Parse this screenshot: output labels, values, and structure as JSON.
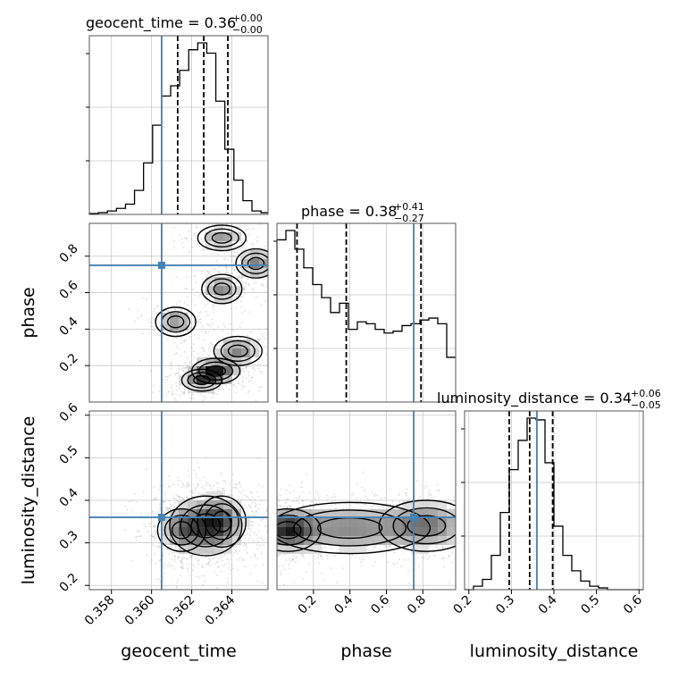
{
  "chart_data": {
    "type": "corner",
    "truth_color": "#4682b4",
    "parameters": [
      "geocent_time",
      "phase",
      "luminosity_distance"
    ],
    "titles": [
      {
        "param": "geocent_time",
        "label": "geocent_time = ",
        "median": "0.36",
        "plus": "+0.00",
        "minus": "−0.00"
      },
      {
        "param": "phase",
        "label": "phase = ",
        "median": "0.38",
        "plus": "+0.41",
        "minus": "−0.27"
      },
      {
        "param": "luminosity_distance",
        "label": "luminosity_distance = ",
        "median": "0.34",
        "plus": "+0.06",
        "minus": "−0.05"
      }
    ],
    "axes": {
      "geocent_time": {
        "label": "geocent_time",
        "range": [
          0.3569,
          0.3658
        ],
        "ticks": [
          0.358,
          0.36,
          0.362,
          0.364
        ],
        "tick_labels": [
          "0.358",
          "0.360",
          "0.362",
          "0.364"
        ],
        "truth": 0.3605,
        "quantiles": [
          0.3613,
          0.3626,
          0.3638
        ]
      },
      "phase": {
        "label": "phase",
        "range": [
          0.0,
          0.98
        ],
        "ticks": [
          0.2,
          0.4,
          0.6,
          0.8
        ],
        "tick_labels": [
          "0.2",
          "0.4",
          "0.6",
          "0.8"
        ],
        "truth": 0.75,
        "quantiles": [
          0.11,
          0.38,
          0.79
        ]
      },
      "luminosity_distance": {
        "label": "luminosity_distance",
        "range": [
          0.19,
          0.61
        ],
        "ticks": [
          0.2,
          0.3,
          0.4,
          0.5,
          0.6
        ],
        "tick_labels": [
          "0.2",
          "0.3",
          "0.4",
          "0.5",
          "0.6"
        ],
        "truth": 0.36,
        "quantiles": [
          0.295,
          0.343,
          0.397
        ]
      }
    },
    "histograms": {
      "geocent_time": {
        "edges": [
          0.3569,
          0.35735,
          0.3578,
          0.35825,
          0.3587,
          0.35915,
          0.3596,
          0.36005,
          0.3605,
          0.36095,
          0.3614,
          0.36185,
          0.3623,
          0.36275,
          0.3632,
          0.36365,
          0.3641,
          0.36455,
          0.365,
          0.36545,
          0.3658
        ],
        "counts": [
          0.005,
          0.01,
          0.02,
          0.035,
          0.06,
          0.14,
          0.3,
          0.52,
          0.69,
          0.75,
          0.84,
          0.96,
          1.0,
          0.94,
          0.66,
          0.38,
          0.2,
          0.08,
          0.02,
          0.01
        ]
      },
      "phase": {
        "edges": [
          0.0,
          0.049,
          0.098,
          0.147,
          0.196,
          0.245,
          0.294,
          0.343,
          0.392,
          0.441,
          0.49,
          0.539,
          0.588,
          0.637,
          0.686,
          0.735,
          0.784,
          0.833,
          0.882,
          0.931,
          0.98
        ],
        "counts": [
          0.87,
          0.92,
          0.82,
          0.72,
          0.63,
          0.56,
          0.48,
          0.53,
          0.39,
          0.43,
          0.42,
          0.39,
          0.37,
          0.38,
          0.41,
          0.42,
          0.44,
          0.45,
          0.42,
          0.24
        ]
      },
      "luminosity_distance": {
        "edges": [
          0.19,
          0.211,
          0.232,
          0.253,
          0.274,
          0.295,
          0.316,
          0.337,
          0.358,
          0.379,
          0.4,
          0.421,
          0.442,
          0.463,
          0.484,
          0.505,
          0.526,
          0.547,
          0.568,
          0.589,
          0.61
        ],
        "counts": [
          0.0,
          0.02,
          0.06,
          0.2,
          0.45,
          0.7,
          0.87,
          1.0,
          0.99,
          0.74,
          0.37,
          0.2,
          0.11,
          0.05,
          0.02,
          0.01,
          0.0,
          0.0,
          0.0,
          0.0
        ]
      }
    },
    "joint_density": [
      {
        "x": "geocent_time",
        "y": "phase",
        "modes": [
          {
            "x": 0.3632,
            "y": 0.17,
            "sx": 0.0006,
            "sy": 0.035,
            "w": 1.0
          },
          {
            "x": 0.3625,
            "y": 0.12,
            "sx": 0.0005,
            "sy": 0.03,
            "w": 0.7
          },
          {
            "x": 0.3643,
            "y": 0.28,
            "sx": 0.0006,
            "sy": 0.04,
            "w": 0.55
          },
          {
            "x": 0.3612,
            "y": 0.44,
            "sx": 0.0005,
            "sy": 0.04,
            "w": 0.5
          },
          {
            "x": 0.3635,
            "y": 0.62,
            "sx": 0.0005,
            "sy": 0.04,
            "w": 0.55
          },
          {
            "x": 0.3652,
            "y": 0.76,
            "sx": 0.0005,
            "sy": 0.04,
            "w": 0.55
          },
          {
            "x": 0.3635,
            "y": 0.9,
            "sx": 0.0006,
            "sy": 0.035,
            "w": 0.45
          }
        ]
      },
      {
        "x": "geocent_time",
        "y": "luminosity_distance",
        "modes": [
          {
            "x": 0.3627,
            "y": 0.34,
            "sx": 0.0009,
            "sy": 0.035,
            "w": 1.0
          },
          {
            "x": 0.3615,
            "y": 0.33,
            "sx": 0.0006,
            "sy": 0.025,
            "w": 0.6
          },
          {
            "x": 0.3635,
            "y": 0.35,
            "sx": 0.0006,
            "sy": 0.03,
            "w": 0.6
          }
        ]
      },
      {
        "x": "phase",
        "y": "luminosity_distance",
        "modes": [
          {
            "x": 0.06,
            "y": 0.33,
            "sx": 0.09,
            "sy": 0.025,
            "w": 1.0
          },
          {
            "x": 0.4,
            "y": 0.335,
            "sx": 0.22,
            "sy": 0.03,
            "w": 0.6
          },
          {
            "x": 0.82,
            "y": 0.34,
            "sx": 0.13,
            "sy": 0.03,
            "w": 0.65
          }
        ]
      }
    ],
    "grid": true
  }
}
